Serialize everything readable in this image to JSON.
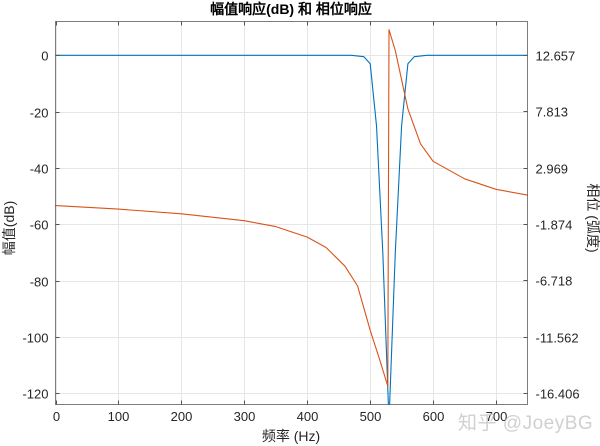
{
  "chart_data": {
    "type": "line",
    "title": "幅值响应(dB) 和 相位响应",
    "xlabel": "频率 (Hz)",
    "ylabel": "幅值(dB)",
    "ylabel_right": "相位 (弧度)",
    "xlim": [
      0,
      750
    ],
    "ylim": [
      -124,
      12
    ],
    "ylim_right": [
      -17.37,
      15.5
    ],
    "x_ticks": [
      "0",
      "100",
      "200",
      "300",
      "400",
      "500",
      "600",
      "700"
    ],
    "y_ticks": [
      "0",
      "-20",
      "-40",
      "-60",
      "-80",
      "-100",
      "-120"
    ],
    "y_ticks_right": [
      "12.657",
      "7.813",
      "2.969",
      "-1.874",
      "-6.718",
      "-11.562",
      "-16.406"
    ],
    "grid": true,
    "series": [
      {
        "name": "幅值响应",
        "axis": "left",
        "color": "#0072BD",
        "x": [
          0,
          100,
          200,
          300,
          400,
          470,
          490,
          500,
          510,
          520,
          530,
          540,
          550,
          560,
          570,
          590,
          650,
          750
        ],
        "values": [
          0,
          0,
          0,
          0,
          0,
          0,
          -0.5,
          -3,
          -25,
          -70,
          -130,
          -70,
          -25,
          -3,
          -0.5,
          0,
          0,
          0
        ]
      },
      {
        "name": "相位响应",
        "axis": "right",
        "color": "#D95319",
        "x": [
          0,
          100,
          200,
          300,
          350,
          400,
          430,
          460,
          480,
          500,
          515,
          528,
          530,
          540,
          550,
          560,
          580,
          600,
          650,
          700,
          750
        ],
        "values": [
          -0.3,
          -0.6,
          -1.0,
          -1.6,
          -2.1,
          -3.0,
          -3.9,
          -5.5,
          -7.2,
          -11.0,
          -13.5,
          -15.8,
          14.8,
          13.0,
          10.5,
          8.0,
          5.0,
          3.5,
          2.0,
          1.1,
          0.6
        ]
      }
    ]
  },
  "watermark": "知乎 @JoeyBG"
}
